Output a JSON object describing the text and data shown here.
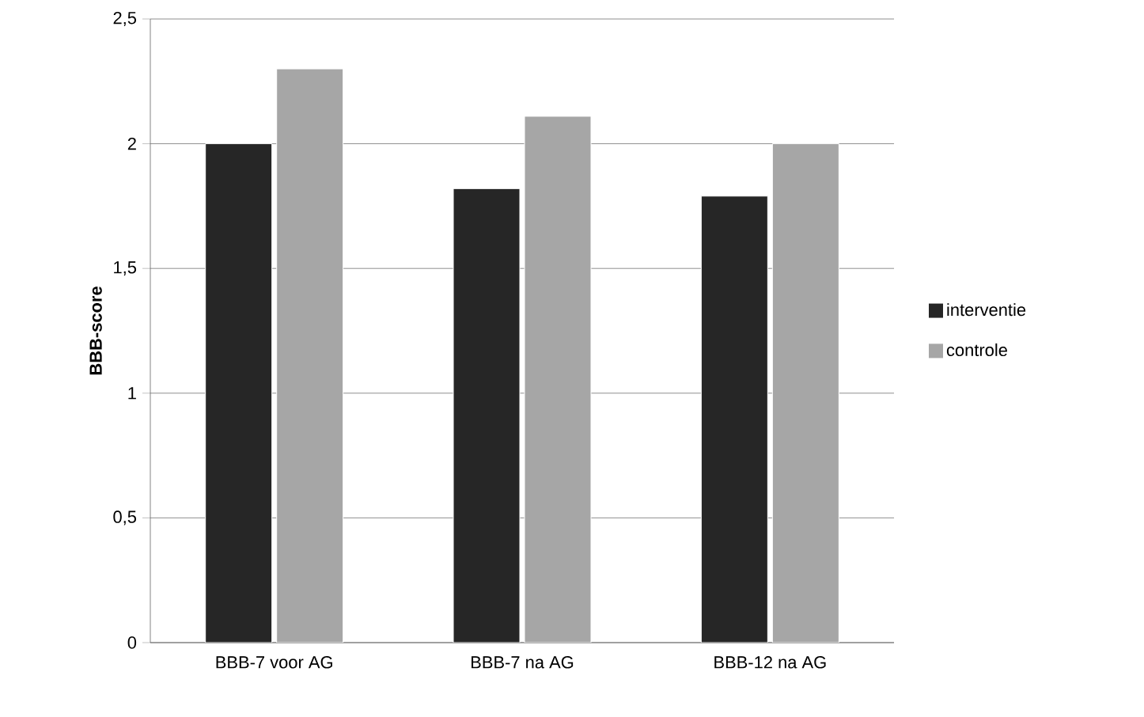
{
  "chart_data": {
    "type": "bar",
    "ylabel": "BBB-score",
    "categories": [
      "BBB-7 voor AG",
      "BBB-7 na AG",
      "BBB-12 na AG"
    ],
    "series": [
      {
        "name": "interventie",
        "color": "#262626",
        "values": [
          2.0,
          1.82,
          1.79
        ]
      },
      {
        "name": "controle",
        "color": "#a6a6a6",
        "values": [
          2.3,
          2.11,
          2.0
        ]
      }
    ],
    "ylim": [
      0,
      2.5
    ],
    "yticks": [
      0,
      {
        "value": 0.5,
        "label": "0,5"
      },
      1,
      {
        "value": 1.5,
        "label": "1,5"
      },
      2,
      {
        "value": 2.5,
        "label": "2,5"
      }
    ],
    "grid": "y",
    "legend": "right"
  }
}
